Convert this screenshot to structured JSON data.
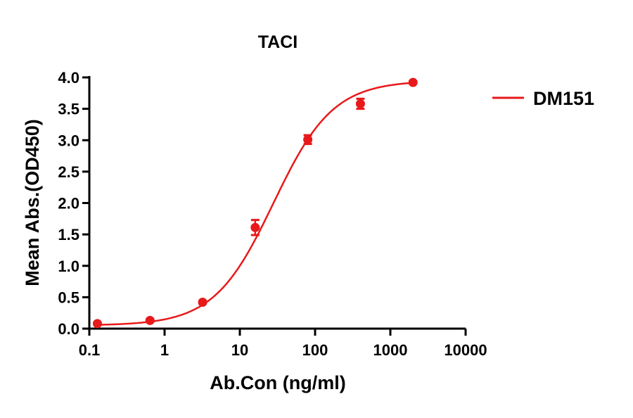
{
  "chart_data": {
    "type": "line",
    "title": "TACI",
    "xlabel": "Ab.Con (ng/ml)",
    "ylabel": "Mean Abs.(OD450)",
    "xscale": "log",
    "xlim": [
      0.1,
      10000
    ],
    "ylim": [
      0,
      4.0
    ],
    "xticks": [
      "0.1",
      "1",
      "10",
      "100",
      "1000",
      "10000"
    ],
    "xtick_values": [
      0.1,
      1,
      10,
      100,
      1000,
      10000
    ],
    "yticks": [
      "0.0",
      "0.5",
      "1.0",
      "1.5",
      "2.0",
      "2.5",
      "3.0",
      "3.5",
      "4.0"
    ],
    "ytick_values": [
      0,
      0.5,
      1,
      1.5,
      2,
      2.5,
      3,
      3.5,
      4
    ],
    "grid": false,
    "legend_position": "right",
    "series": [
      {
        "name": "DM151",
        "color": "#e8191a",
        "x": [
          0.128,
          0.64,
          3.2,
          16,
          80,
          400,
          2000
        ],
        "y": [
          0.08,
          0.13,
          0.42,
          1.61,
          3.01,
          3.58,
          3.92
        ],
        "error": [
          0.02,
          0.02,
          0.02,
          0.12,
          0.07,
          0.08,
          0.02
        ],
        "fit": {
          "model": "4PL",
          "bottom": 0.05,
          "top": 3.95,
          "ec50": 28,
          "hill": 1.1
        }
      }
    ]
  }
}
